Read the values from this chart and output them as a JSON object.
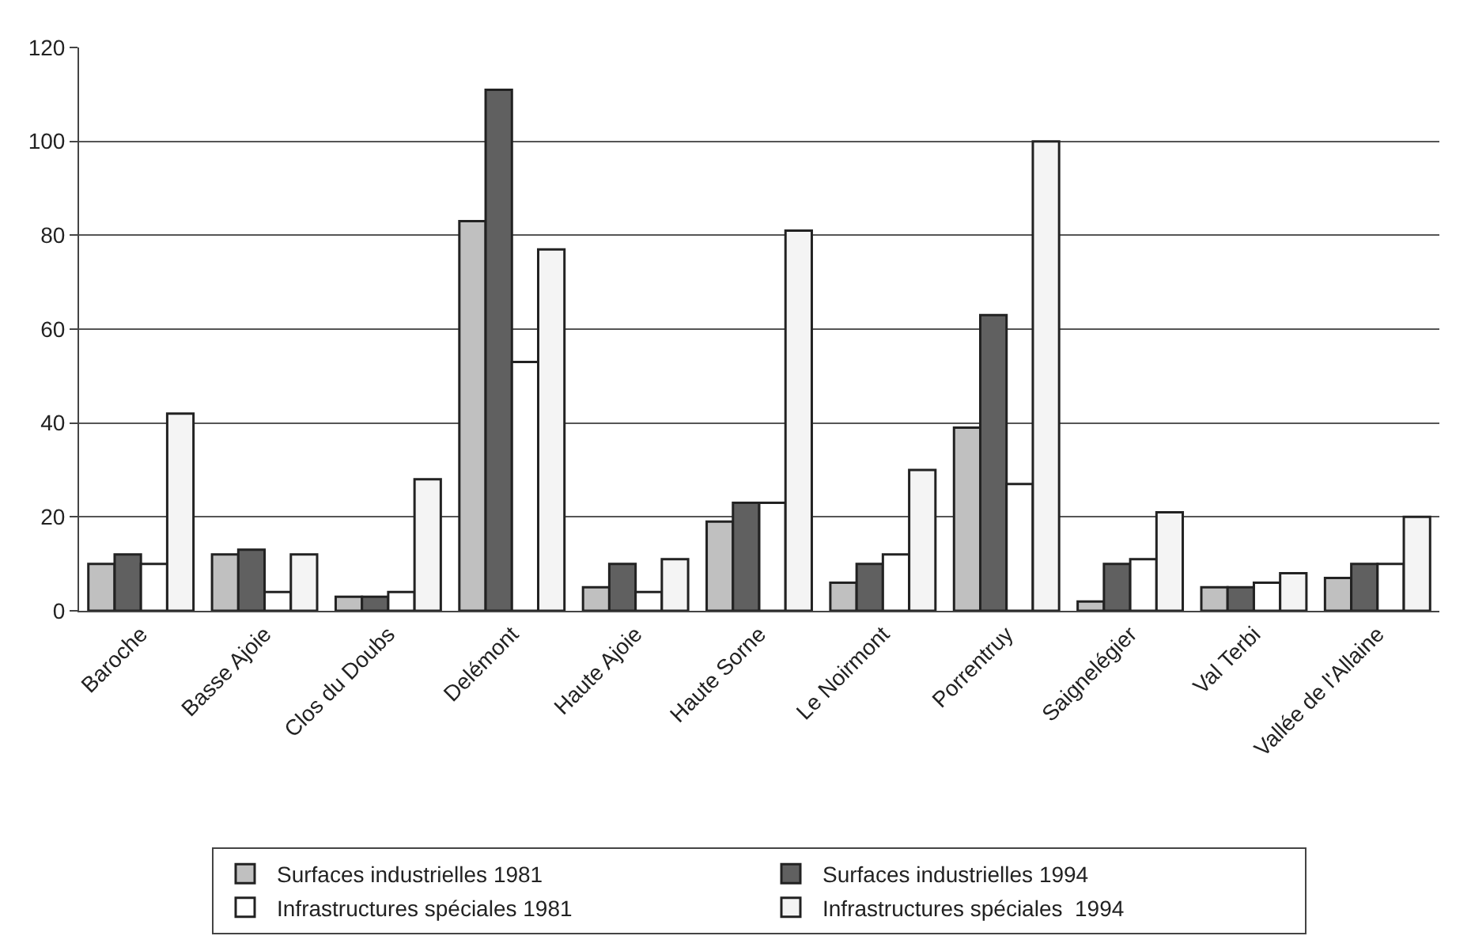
{
  "chart_data": {
    "type": "bar",
    "categories": [
      "Baroche",
      "Basse Ajoie",
      "Clos du Doubs",
      "Delémont",
      "Haute Ajoie",
      "Haute Sorne",
      "Le Noirmont",
      "Porrentruy",
      "Saignelégier",
      "Val Terbi",
      "Vallée de l'Allaine"
    ],
    "series": [
      {
        "name": "Surfaces industrielles 1981",
        "color": "#c0c0c0",
        "values": [
          10,
          12,
          3,
          83,
          5,
          19,
          6,
          39,
          2,
          5,
          7
        ]
      },
      {
        "name": "Surfaces industrielles 1994",
        "color": "#606060",
        "values": [
          12,
          13,
          3,
          111,
          10,
          23,
          10,
          63,
          10,
          5,
          10
        ]
      },
      {
        "name": "Infrastructures spéciales 1981",
        "color": "#ffffff",
        "values": [
          10,
          4,
          4,
          53,
          4,
          23,
          12,
          27,
          11,
          6,
          10
        ]
      },
      {
        "name": "Infrastructures spéciales  1994",
        "color": "#f4f4f4",
        "values": [
          42,
          12,
          28,
          77,
          11,
          81,
          30,
          100,
          21,
          8,
          20
        ]
      }
    ],
    "ylim": [
      0,
      120
    ],
    "yticks": [
      0,
      20,
      40,
      60,
      80,
      100,
      120
    ],
    "grid": "y",
    "legend": "bottom"
  }
}
